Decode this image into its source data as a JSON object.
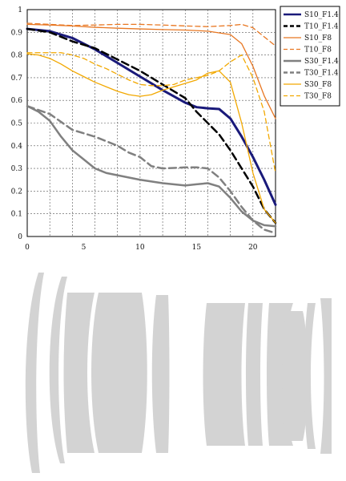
{
  "chart_data": {
    "type": "line",
    "title": "",
    "xlabel": "",
    "ylabel": "",
    "xlim": [
      0,
      22
    ],
    "ylim": [
      0,
      1
    ],
    "xticks": [
      "0",
      "5",
      "10",
      "15",
      "20"
    ],
    "yticks": [
      "0",
      "0.1",
      "0.2",
      "0.3",
      "0.4",
      "0.5",
      "0.6",
      "0.7",
      "0.8",
      "0.9",
      "1"
    ],
    "grid": true,
    "legend_position": "right",
    "series": [
      {
        "name": "S10_F1.4",
        "color": "#1a1a7a",
        "width": 3,
        "dash": "solid",
        "points": [
          [
            0,
            0.915
          ],
          [
            2,
            0.905
          ],
          [
            4,
            0.875
          ],
          [
            6,
            0.825
          ],
          [
            8,
            0.765
          ],
          [
            10,
            0.705
          ],
          [
            12,
            0.645
          ],
          [
            14,
            0.59
          ],
          [
            15,
            0.57
          ],
          [
            16,
            0.565
          ],
          [
            17,
            0.562
          ],
          [
            18,
            0.52
          ],
          [
            19,
            0.44
          ],
          [
            20,
            0.35
          ],
          [
            21,
            0.25
          ],
          [
            22,
            0.14
          ]
        ]
      },
      {
        "name": "T10_F1.4",
        "color": "#000000",
        "width": 2.5,
        "dash": "dashed",
        "points": [
          [
            0,
            0.915
          ],
          [
            2,
            0.9
          ],
          [
            4,
            0.86
          ],
          [
            6,
            0.83
          ],
          [
            8,
            0.78
          ],
          [
            10,
            0.73
          ],
          [
            12,
            0.67
          ],
          [
            14,
            0.61
          ],
          [
            15,
            0.55
          ],
          [
            16,
            0.5
          ],
          [
            17,
            0.45
          ],
          [
            18,
            0.38
          ],
          [
            19,
            0.3
          ],
          [
            20,
            0.22
          ],
          [
            21,
            0.12
          ],
          [
            22,
            0.06
          ]
        ]
      },
      {
        "name": "S10_F8",
        "color": "#e87722",
        "width": 1.3,
        "dash": "solid",
        "points": [
          [
            0,
            0.935
          ],
          [
            2,
            0.932
          ],
          [
            4,
            0.928
          ],
          [
            6,
            0.922
          ],
          [
            8,
            0.918
          ],
          [
            10,
            0.915
          ],
          [
            12,
            0.912
          ],
          [
            14,
            0.91
          ],
          [
            16,
            0.905
          ],
          [
            18,
            0.89
          ],
          [
            19,
            0.85
          ],
          [
            20,
            0.75
          ],
          [
            21,
            0.62
          ],
          [
            22,
            0.52
          ]
        ]
      },
      {
        "name": "T10_F8",
        "color": "#e87722",
        "width": 1.3,
        "dash": "dashed",
        "points": [
          [
            0,
            0.94
          ],
          [
            2,
            0.935
          ],
          [
            4,
            0.93
          ],
          [
            6,
            0.932
          ],
          [
            8,
            0.935
          ],
          [
            10,
            0.935
          ],
          [
            12,
            0.932
          ],
          [
            14,
            0.928
          ],
          [
            16,
            0.925
          ],
          [
            18,
            0.93
          ],
          [
            19,
            0.935
          ],
          [
            20,
            0.92
          ],
          [
            21,
            0.88
          ],
          [
            22,
            0.84
          ]
        ]
      },
      {
        "name": "S30_F1.4",
        "color": "#808080",
        "width": 2.5,
        "dash": "solid",
        "points": [
          [
            0,
            0.575
          ],
          [
            1,
            0.55
          ],
          [
            2,
            0.51
          ],
          [
            3,
            0.44
          ],
          [
            4,
            0.38
          ],
          [
            5,
            0.34
          ],
          [
            6,
            0.3
          ],
          [
            7,
            0.28
          ],
          [
            8,
            0.27
          ],
          [
            10,
            0.25
          ],
          [
            12,
            0.235
          ],
          [
            14,
            0.225
          ],
          [
            15,
            0.23
          ],
          [
            16,
            0.235
          ],
          [
            17,
            0.22
          ],
          [
            18,
            0.17
          ],
          [
            19,
            0.11
          ],
          [
            20,
            0.07
          ],
          [
            21,
            0.05
          ],
          [
            22,
            0.045
          ]
        ]
      },
      {
        "name": "T30_F1.4",
        "color": "#808080",
        "width": 2.5,
        "dash": "dashed",
        "points": [
          [
            0,
            0.575
          ],
          [
            2,
            0.54
          ],
          [
            4,
            0.47
          ],
          [
            6,
            0.44
          ],
          [
            8,
            0.4
          ],
          [
            9,
            0.37
          ],
          [
            10,
            0.35
          ],
          [
            11,
            0.31
          ],
          [
            12,
            0.3
          ],
          [
            13,
            0.302
          ],
          [
            14,
            0.305
          ],
          [
            15,
            0.305
          ],
          [
            16,
            0.3
          ],
          [
            17,
            0.26
          ],
          [
            18,
            0.2
          ],
          [
            19,
            0.13
          ],
          [
            20,
            0.07
          ],
          [
            21,
            0.03
          ],
          [
            22,
            0.015
          ]
        ]
      },
      {
        "name": "S30_F8",
        "color": "#f2a800",
        "width": 1.3,
        "dash": "solid",
        "points": [
          [
            0,
            0.805
          ],
          [
            1,
            0.8
          ],
          [
            2,
            0.785
          ],
          [
            3,
            0.76
          ],
          [
            4,
            0.73
          ],
          [
            5,
            0.705
          ],
          [
            6,
            0.68
          ],
          [
            7,
            0.66
          ],
          [
            8,
            0.64
          ],
          [
            9,
            0.625
          ],
          [
            10,
            0.618
          ],
          [
            11,
            0.625
          ],
          [
            12,
            0.645
          ],
          [
            13,
            0.66
          ],
          [
            14,
            0.675
          ],
          [
            15,
            0.69
          ],
          [
            16,
            0.72
          ],
          [
            17,
            0.73
          ],
          [
            18,
            0.68
          ],
          [
            19,
            0.5
          ],
          [
            20,
            0.28
          ],
          [
            21,
            0.12
          ],
          [
            22,
            0.06
          ]
        ]
      },
      {
        "name": "T30_F8",
        "color": "#f2a800",
        "width": 1.3,
        "dash": "dashed",
        "points": [
          [
            0,
            0.81
          ],
          [
            1,
            0.81
          ],
          [
            2,
            0.81
          ],
          [
            3,
            0.81
          ],
          [
            4,
            0.8
          ],
          [
            5,
            0.785
          ],
          [
            6,
            0.76
          ],
          [
            7,
            0.74
          ],
          [
            8,
            0.715
          ],
          [
            9,
            0.69
          ],
          [
            10,
            0.67
          ],
          [
            11,
            0.665
          ],
          [
            12,
            0.665
          ],
          [
            13,
            0.67
          ],
          [
            14,
            0.69
          ],
          [
            15,
            0.7
          ],
          [
            16,
            0.71
          ],
          [
            17,
            0.73
          ],
          [
            18,
            0.77
          ],
          [
            19,
            0.8
          ],
          [
            20,
            0.7
          ],
          [
            21,
            0.55
          ],
          [
            22,
            0.28
          ]
        ]
      }
    ]
  },
  "diagram": {
    "caption": "",
    "element_count": 11
  }
}
